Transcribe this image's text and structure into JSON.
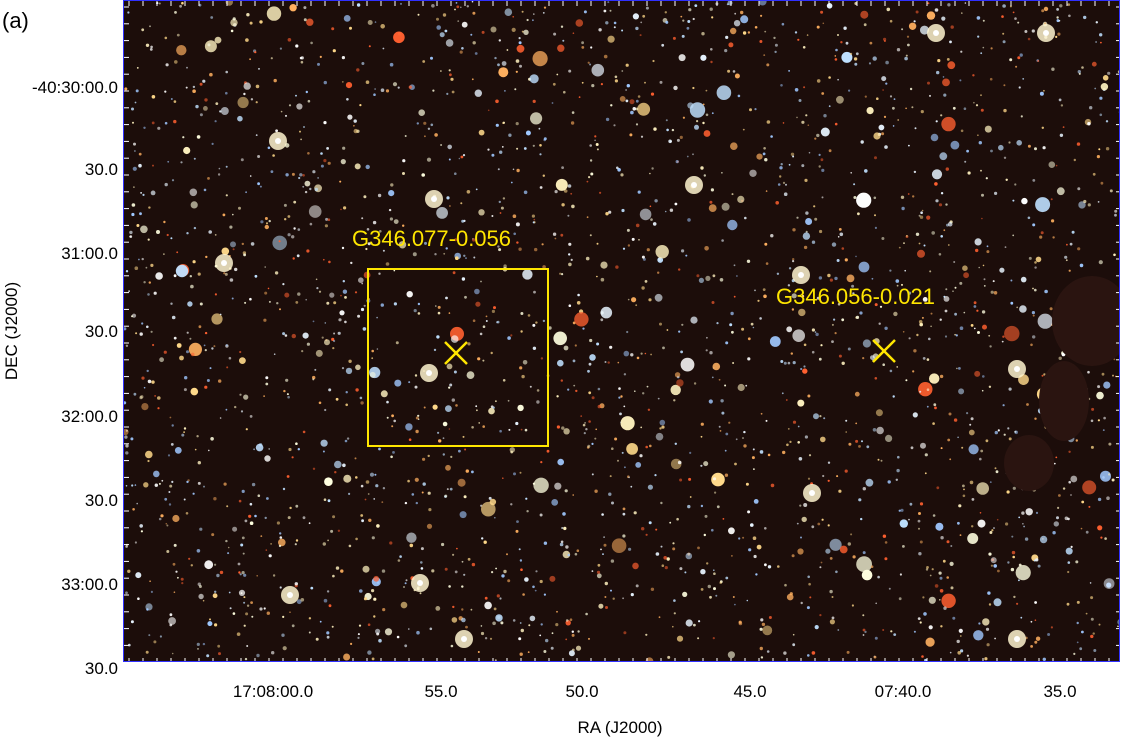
{
  "panel_label": "(a)",
  "axes": {
    "xlabel": "RA (J2000)",
    "ylabel": "DEC (J2000)",
    "x_ticks": [
      "17:08:00.0",
      "55.0",
      "50.0",
      "45.0",
      "07:40.0",
      "35.0"
    ],
    "y_ticks": [
      "-40:30:00.0",
      "30.0",
      "31:00.0",
      "30.0",
      "32:00.0",
      "30.0",
      "33:00.0",
      "30.0"
    ]
  },
  "sources": [
    {
      "name": "G346.077-0.056",
      "marker": "cross",
      "boxed": true
    },
    {
      "name": "G346.056-0.021",
      "marker": "cross",
      "boxed": false
    }
  ],
  "colors": {
    "axis_frame": "#3030ff",
    "annotation": "#ffe600",
    "background_sky": "#1c0d0a"
  }
}
